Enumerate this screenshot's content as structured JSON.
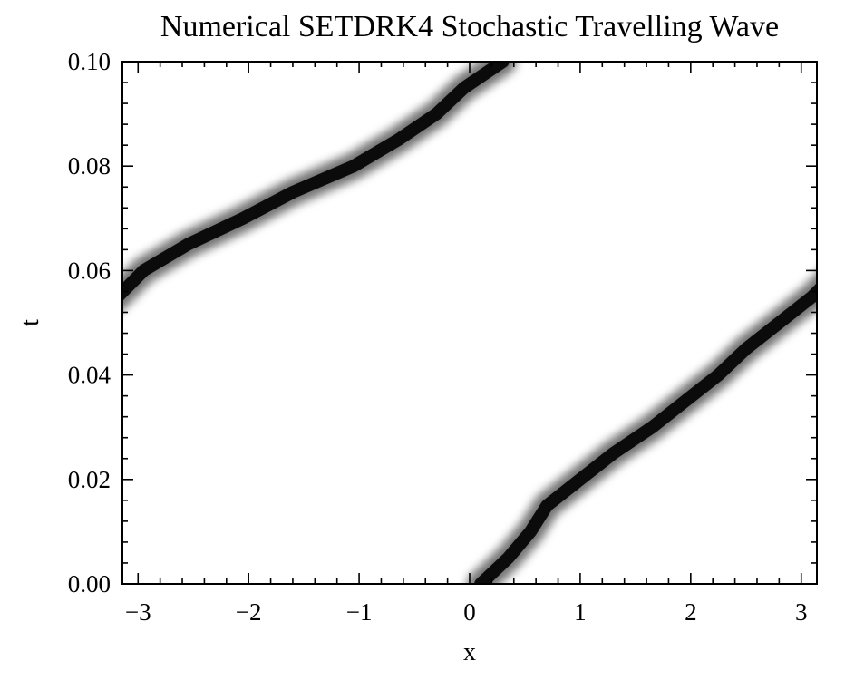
{
  "chart_data": {
    "type": "heatmap",
    "title": "Numerical SETDRK4 Stochastic Travelling Wave",
    "xlabel": "x",
    "ylabel": "t",
    "xlim": [
      -3.14159,
      3.14159
    ],
    "ylim": [
      0.0,
      0.1
    ],
    "x_ticks": [
      {
        "value": -3,
        "label": "−3"
      },
      {
        "value": -2,
        "label": "−2"
      },
      {
        "value": -1,
        "label": "−1"
      },
      {
        "value": 0,
        "label": "0"
      },
      {
        "value": 1,
        "label": "1"
      },
      {
        "value": 2,
        "label": "2"
      },
      {
        "value": 3,
        "label": "3"
      }
    ],
    "y_ticks": [
      {
        "value": 0.0,
        "label": "0.00"
      },
      {
        "value": 0.02,
        "label": "0.02"
      },
      {
        "value": 0.04,
        "label": "0.04"
      },
      {
        "value": 0.06,
        "label": "0.06"
      },
      {
        "value": 0.08,
        "label": "0.08"
      },
      {
        "value": 0.1,
        "label": "0.10"
      }
    ],
    "grid": false,
    "colormap": "grayscale-inverted",
    "wave_path": {
      "t": [
        0.0,
        0.005,
        0.01,
        0.015,
        0.02,
        0.025,
        0.03,
        0.035,
        0.04,
        0.045,
        0.05,
        0.055,
        0.06,
        0.065,
        0.07,
        0.075,
        0.08,
        0.085,
        0.09,
        0.095,
        0.1
      ],
      "x": [
        0.1,
        0.35,
        0.55,
        0.7,
        1.0,
        1.3,
        1.65,
        1.95,
        2.25,
        2.5,
        2.8,
        3.1,
        -2.95,
        -2.55,
        -2.05,
        -1.6,
        -1.05,
        -0.65,
        -0.3,
        -0.05,
        0.3
      ]
    },
    "wave_color": "#000000",
    "background_color": "#ffffff"
  }
}
